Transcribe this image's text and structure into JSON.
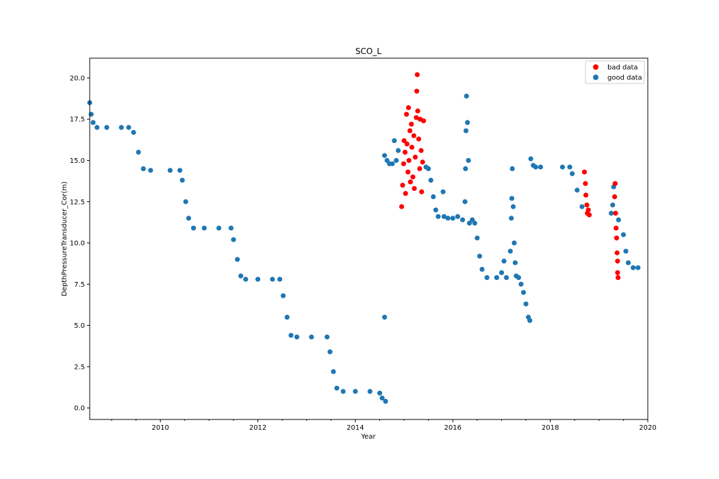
{
  "chart_data": {
    "type": "scatter",
    "title": "SCO_L",
    "xlabel": "Year",
    "ylabel": "DepthPressureTransducer_Cor(m)",
    "xlim": [
      2008.55,
      2020.0
    ],
    "ylim": [
      -0.7,
      21.2
    ],
    "xticks": [
      2010,
      2012,
      2014,
      2016,
      2018,
      2020
    ],
    "yticks": [
      0.0,
      2.5,
      5.0,
      7.5,
      10.0,
      12.5,
      15.0,
      17.5,
      20.0
    ],
    "grid": false,
    "legend_position": "top-right",
    "colors": {
      "bad": "#ff0000",
      "good": "#1f77b4"
    },
    "series": [
      {
        "name": "bad data",
        "color": "#ff0000",
        "points": [
          [
            2014.95,
            12.2
          ],
          [
            2014.97,
            13.5
          ],
          [
            2014.99,
            14.8
          ],
          [
            2015.0,
            16.2
          ],
          [
            2015.02,
            15.5
          ],
          [
            2015.03,
            13.0
          ],
          [
            2015.05,
            17.8
          ],
          [
            2015.06,
            16.0
          ],
          [
            2015.08,
            14.3
          ],
          [
            2015.09,
            18.2
          ],
          [
            2015.1,
            15.0
          ],
          [
            2015.12,
            16.8
          ],
          [
            2015.13,
            13.7
          ],
          [
            2015.15,
            17.2
          ],
          [
            2015.16,
            15.8
          ],
          [
            2015.18,
            14.0
          ],
          [
            2015.2,
            16.5
          ],
          [
            2015.21,
            13.3
          ],
          [
            2015.23,
            15.2
          ],
          [
            2015.25,
            17.6
          ],
          [
            2015.26,
            19.2
          ],
          [
            2015.27,
            20.2
          ],
          [
            2015.28,
            18.0
          ],
          [
            2015.3,
            16.3
          ],
          [
            2015.32,
            14.5
          ],
          [
            2015.33,
            17.5
          ],
          [
            2015.35,
            15.6
          ],
          [
            2015.36,
            13.1
          ],
          [
            2015.38,
            14.9
          ],
          [
            2015.4,
            17.4
          ],
          [
            2018.7,
            14.3
          ],
          [
            2018.72,
            13.6
          ],
          [
            2018.73,
            12.9
          ],
          [
            2018.75,
            12.3
          ],
          [
            2018.76,
            11.8
          ],
          [
            2018.78,
            12.0
          ],
          [
            2018.8,
            11.7
          ],
          [
            2019.32,
            12.8
          ],
          [
            2019.33,
            13.6
          ],
          [
            2019.34,
            11.8
          ],
          [
            2019.35,
            10.9
          ],
          [
            2019.36,
            10.3
          ],
          [
            2019.37,
            9.4
          ],
          [
            2019.38,
            8.9
          ],
          [
            2019.38,
            8.2
          ],
          [
            2019.39,
            7.9
          ]
        ]
      },
      {
        "name": "good data",
        "color": "#1f77b4",
        "points": [
          [
            2008.55,
            18.5
          ],
          [
            2008.58,
            17.8
          ],
          [
            2008.62,
            17.3
          ],
          [
            2008.7,
            17.0
          ],
          [
            2008.9,
            17.0
          ],
          [
            2009.2,
            17.0
          ],
          [
            2009.35,
            17.0
          ],
          [
            2009.45,
            16.7
          ],
          [
            2009.55,
            15.5
          ],
          [
            2009.65,
            14.5
          ],
          [
            2009.8,
            14.4
          ],
          [
            2010.2,
            14.4
          ],
          [
            2010.4,
            14.4
          ],
          [
            2010.45,
            13.8
          ],
          [
            2010.52,
            12.5
          ],
          [
            2010.58,
            11.5
          ],
          [
            2010.68,
            10.9
          ],
          [
            2010.9,
            10.9
          ],
          [
            2011.2,
            10.9
          ],
          [
            2011.45,
            10.9
          ],
          [
            2011.5,
            10.2
          ],
          [
            2011.58,
            9.0
          ],
          [
            2011.65,
            8.0
          ],
          [
            2011.75,
            7.8
          ],
          [
            2012.0,
            7.8
          ],
          [
            2012.3,
            7.8
          ],
          [
            2012.45,
            7.8
          ],
          [
            2012.52,
            6.8
          ],
          [
            2012.6,
            5.5
          ],
          [
            2012.68,
            4.4
          ],
          [
            2012.8,
            4.3
          ],
          [
            2013.1,
            4.3
          ],
          [
            2013.42,
            4.3
          ],
          [
            2013.48,
            3.4
          ],
          [
            2013.55,
            2.2
          ],
          [
            2013.62,
            1.2
          ],
          [
            2013.75,
            1.0
          ],
          [
            2014.0,
            1.0
          ],
          [
            2014.3,
            1.0
          ],
          [
            2014.5,
            0.9
          ],
          [
            2014.55,
            0.6
          ],
          [
            2014.62,
            0.4
          ],
          [
            2014.6,
            5.5
          ],
          [
            2014.6,
            15.3
          ],
          [
            2014.65,
            15.0
          ],
          [
            2014.7,
            14.8
          ],
          [
            2014.76,
            14.8
          ],
          [
            2014.8,
            16.2
          ],
          [
            2014.84,
            15.0
          ],
          [
            2014.88,
            15.6
          ],
          [
            2015.45,
            14.6
          ],
          [
            2015.5,
            14.5
          ],
          [
            2015.55,
            13.8
          ],
          [
            2015.6,
            12.8
          ],
          [
            2015.65,
            12.0
          ],
          [
            2015.7,
            11.6
          ],
          [
            2015.8,
            13.1
          ],
          [
            2015.82,
            11.6
          ],
          [
            2015.9,
            11.5
          ],
          [
            2016.0,
            11.5
          ],
          [
            2016.1,
            11.6
          ],
          [
            2016.2,
            11.4
          ],
          [
            2016.25,
            12.5
          ],
          [
            2016.26,
            14.5
          ],
          [
            2016.27,
            16.8
          ],
          [
            2016.28,
            18.9
          ],
          [
            2016.3,
            17.3
          ],
          [
            2016.32,
            15.0
          ],
          [
            2016.34,
            11.2
          ],
          [
            2016.4,
            11.4
          ],
          [
            2016.45,
            11.2
          ],
          [
            2016.5,
            10.3
          ],
          [
            2016.55,
            9.2
          ],
          [
            2016.6,
            8.4
          ],
          [
            2016.7,
            7.9
          ],
          [
            2016.9,
            7.9
          ],
          [
            2017.0,
            8.2
          ],
          [
            2017.05,
            8.9
          ],
          [
            2017.1,
            7.9
          ],
          [
            2017.18,
            9.5
          ],
          [
            2017.2,
            11.5
          ],
          [
            2017.21,
            12.7
          ],
          [
            2017.22,
            14.5
          ],
          [
            2017.24,
            12.2
          ],
          [
            2017.26,
            10.0
          ],
          [
            2017.28,
            8.8
          ],
          [
            2017.3,
            8.0
          ],
          [
            2017.35,
            7.9
          ],
          [
            2017.4,
            7.5
          ],
          [
            2017.45,
            7.0
          ],
          [
            2017.5,
            6.3
          ],
          [
            2017.55,
            5.5
          ],
          [
            2017.58,
            5.3
          ],
          [
            2017.6,
            15.1
          ],
          [
            2017.65,
            14.7
          ],
          [
            2017.7,
            14.6
          ],
          [
            2017.8,
            14.6
          ],
          [
            2018.25,
            14.6
          ],
          [
            2018.4,
            14.6
          ],
          [
            2018.45,
            14.2
          ],
          [
            2018.55,
            13.2
          ],
          [
            2018.65,
            12.2
          ],
          [
            2019.25,
            11.8
          ],
          [
            2019.28,
            12.3
          ],
          [
            2019.3,
            13.4
          ],
          [
            2019.4,
            11.4
          ],
          [
            2019.5,
            10.5
          ],
          [
            2019.55,
            9.5
          ],
          [
            2019.6,
            8.8
          ],
          [
            2019.7,
            8.5
          ],
          [
            2019.8,
            8.5
          ]
        ]
      }
    ]
  }
}
